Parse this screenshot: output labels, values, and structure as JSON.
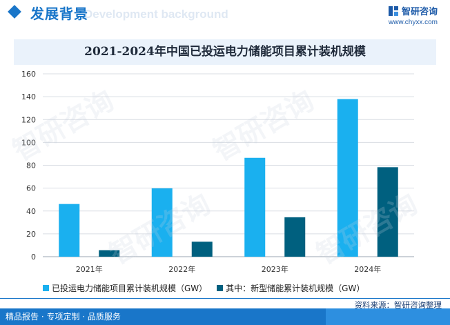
{
  "header": {
    "section_title": "发展背景",
    "section_bg_text": "Development background",
    "brand_name": "智研咨询",
    "brand_url": "www.chyxx.com"
  },
  "chart_data": {
    "type": "bar",
    "title": "2021-2024年中国已投运电力储能项目累计装机规模",
    "categories": [
      "2021年",
      "2022年",
      "2023年",
      "2024年"
    ],
    "series": [
      {
        "name": "已投运电力储能项目累计装机规模（GW）",
        "color": "#1ab0ef",
        "values": [
          46.1,
          59.8,
          86.5,
          137.9
        ]
      },
      {
        "name": "其中：新型储能累计装机规模（GW）",
        "color": "#00607f",
        "values": [
          5.7,
          13.1,
          34.5,
          78.3
        ]
      }
    ],
    "ylim": [
      0,
      160
    ],
    "yticks": [
      0,
      20,
      40,
      60,
      80,
      100,
      120,
      140,
      160
    ],
    "xlabel": "",
    "ylabel": "",
    "grid": true,
    "legend_position": "bottom"
  },
  "footer": {
    "source": "资料来源：智研咨询整理",
    "services": "精品报告 · 专项定制 · 品质服务"
  },
  "watermark_text": "智研咨询"
}
